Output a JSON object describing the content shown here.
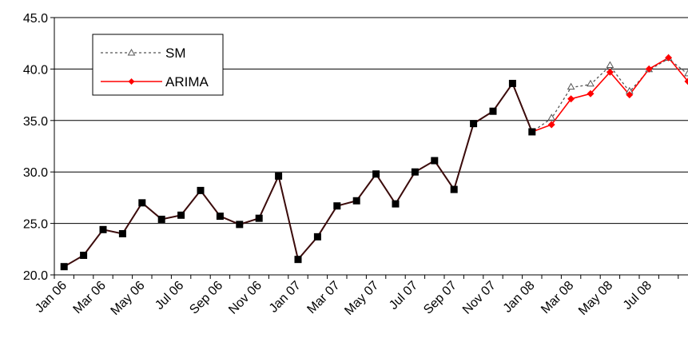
{
  "chart_data": {
    "type": "line",
    "title": "",
    "xlabel": "",
    "ylabel": "",
    "ylim": [
      20.0,
      45.0
    ],
    "y_ticks": [
      "20.0",
      "25.0",
      "30.0",
      "35.0",
      "40.0",
      "45.0"
    ],
    "x_tick_labels": [
      "Jan 06",
      "Mar 06",
      "May 06",
      "Jul 06",
      "Sep 06",
      "Nov 06",
      "Jan 07",
      "Mar 07",
      "May 07",
      "Jul 07",
      "Sep 07",
      "Nov 07",
      "Jan 08",
      "Mar 08",
      "May 08",
      "Jul 08"
    ],
    "x": [
      "Jan 06",
      "Feb 06",
      "Mar 06",
      "Apr 06",
      "May 06",
      "Jun 06",
      "Jul 06",
      "Aug 06",
      "Sep 06",
      "Oct 06",
      "Nov 06",
      "Dec 06",
      "Jan 07",
      "Feb 07",
      "Mar 07",
      "Apr 07",
      "May 07",
      "Jun 07",
      "Jul 07",
      "Aug 07",
      "Sep 07",
      "Oct 07",
      "Nov 07",
      "Dec 07",
      "Jan 08",
      "Feb 08",
      "Mar 08",
      "Apr 08",
      "May 08",
      "Jun 08",
      "Jul 08",
      "Aug 08",
      "Sep 08"
    ],
    "grid": "horizontal",
    "legend_position": "top-left",
    "series": [
      {
        "name": "SM",
        "color": "#555555",
        "style": "dashed",
        "marker": "open-triangle",
        "values": [
          20.8,
          21.9,
          24.4,
          24.0,
          27.0,
          25.4,
          25.8,
          28.2,
          25.7,
          24.9,
          25.5,
          29.6,
          21.5,
          23.7,
          26.7,
          27.2,
          29.8,
          26.9,
          30.0,
          31.1,
          28.3,
          34.7,
          35.9,
          38.6,
          33.9,
          35.2,
          38.2,
          38.5,
          40.3,
          37.8,
          39.9,
          41.0,
          39.5
        ]
      },
      {
        "name": "ARIMA",
        "color": "#ff0000",
        "style": "solid",
        "marker": "diamond",
        "values": [
          20.8,
          21.9,
          24.4,
          24.0,
          27.0,
          25.4,
          25.8,
          28.2,
          25.7,
          24.9,
          25.5,
          29.6,
          21.5,
          23.7,
          26.7,
          27.2,
          29.8,
          26.9,
          30.0,
          31.1,
          28.3,
          34.7,
          35.9,
          38.6,
          33.9,
          34.6,
          37.1,
          37.6,
          39.7,
          37.5,
          40.0,
          41.1,
          38.8
        ]
      }
    ],
    "historical_until_index": 24
  }
}
